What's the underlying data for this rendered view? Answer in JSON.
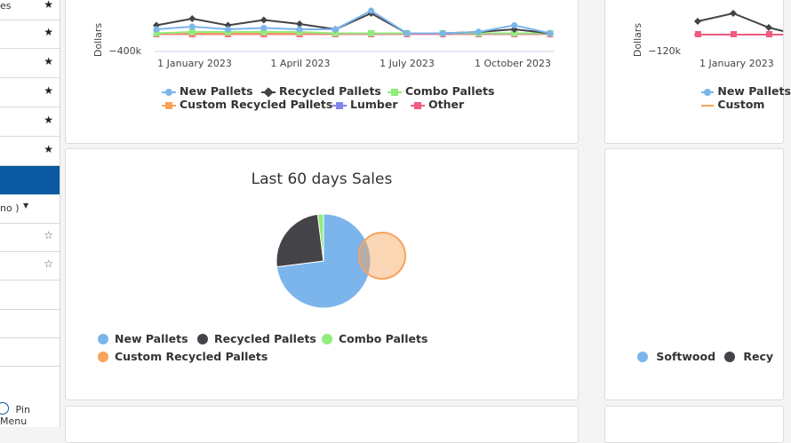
{
  "sidebar": {
    "partial_label_top": "es",
    "partial_dropdown": "no )",
    "pin_label": "Pin Menu"
  },
  "chart_data": [
    {
      "type": "line",
      "ylabel": "Dollars",
      "y_tick": "−400k",
      "x_ticks": [
        "1 January 2023",
        "1 April 2023",
        "1 July 2023",
        "1 October 2023"
      ],
      "series": [
        {
          "name": "New Pallets",
          "color": "#7cb5ec",
          "marker": "circle",
          "values": [
            0.2,
            0.3,
            0.2,
            0.25,
            0.2,
            0.2,
            0.9,
            0.05,
            0.05,
            0.1,
            0.35,
            0.05
          ]
        },
        {
          "name": "Recycled Pallets",
          "color": "#434348",
          "marker": "diamond",
          "values": [
            0.35,
            0.6,
            0.35,
            0.55,
            0.4,
            0.2,
            0.8,
            0.05,
            0.05,
            0.1,
            0.2,
            0.05
          ]
        },
        {
          "name": "Combo Pallets",
          "color": "#90ed7d",
          "marker": "square",
          "values": [
            0.05,
            0.1,
            0.1,
            0.1,
            0.1,
            0.05,
            0.05,
            0.05,
            0.05,
            0.05,
            0.05,
            0.05
          ]
        },
        {
          "name": "Custom Recycled Pallets",
          "color": "#f7a35c",
          "marker": "triangle",
          "values": [
            0.05,
            0.05,
            0.05,
            0.05,
            0.05,
            0.05,
            0.05,
            0.05,
            0.05,
            0.05,
            0.05,
            0.05
          ]
        },
        {
          "name": "Lumber",
          "color": "#8085e9",
          "marker": "triangle-down",
          "values": [
            0.05,
            0.05,
            0.05,
            0.05,
            0.05,
            0.05,
            0.05,
            0.05,
            0.05,
            0.05,
            0.05,
            0.05
          ]
        },
        {
          "name": "Other",
          "color": "#f15c80",
          "marker": "square",
          "values": [
            0.02,
            0.02,
            0.02,
            0.02,
            0.02,
            0.02,
            0.02,
            0.02,
            0.02,
            0.02,
            0.02,
            0.02
          ]
        }
      ]
    },
    {
      "type": "line",
      "ylabel": "Dollars",
      "y_tick": "−120k",
      "x_ticks": [
        "1 January 2023"
      ],
      "series": [
        {
          "name": "New Pallets",
          "color": "#7cb5ec"
        },
        {
          "name": "Custom",
          "color": "#f7a35c"
        }
      ]
    },
    {
      "type": "pie",
      "title": "Last 60 days Sales",
      "slices": [
        {
          "name": "New Pallets",
          "value": 73,
          "color": "#7cb5ec"
        },
        {
          "name": "Recycled Pallets",
          "value": 25,
          "color": "#434348"
        },
        {
          "name": "Combo Pallets",
          "value": 2,
          "color": "#90ed7d"
        },
        {
          "name": "Custom Recycled Pallets",
          "value": 0,
          "color": "#f7a35c"
        }
      ]
    },
    {
      "type": "pie",
      "legend": [
        "Softwood",
        "Recy"
      ],
      "colors": [
        "#7cb5ec",
        "#434348"
      ]
    }
  ]
}
